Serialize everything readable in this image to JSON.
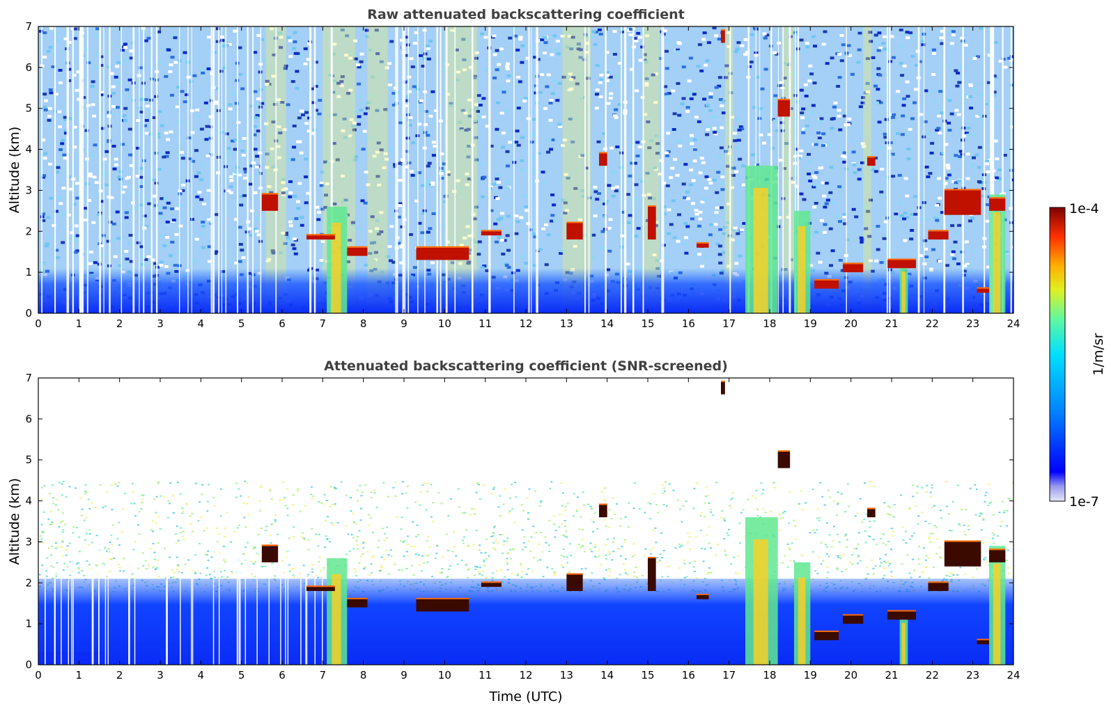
{
  "chart_data": [
    {
      "type": "heatmap",
      "title": "Raw attenuated backscattering coefficient",
      "xlabel": "",
      "ylabel": "Altitude (km)",
      "xlim": [
        0,
        24
      ],
      "ylim": [
        0,
        7
      ],
      "x_ticks": [
        "0",
        "1",
        "2",
        "3",
        "4",
        "5",
        "6",
        "7",
        "8",
        "9",
        "10",
        "11",
        "12",
        "13",
        "14",
        "15",
        "16",
        "17",
        "18",
        "19",
        "20",
        "21",
        "22",
        "23",
        "24"
      ],
      "y_ticks": [
        "0",
        "1",
        "2",
        "3",
        "4",
        "5",
        "6",
        "7"
      ],
      "colorscale": "jet",
      "color_range": [
        "1e-7",
        "1e-4"
      ],
      "features": {
        "boundary_layer_top_km": 0.6,
        "cloud_layers": [
          {
            "t": [
              5.5,
              5.9
            ],
            "alt": [
              2.5,
              2.9
            ]
          },
          {
            "t": [
              6.6,
              7.3
            ],
            "alt": [
              1.8,
              1.9
            ]
          },
          {
            "t": [
              7.6,
              8.1
            ],
            "alt": [
              1.4,
              1.6
            ]
          },
          {
            "t": [
              9.3,
              10.6
            ],
            "alt": [
              1.3,
              1.6
            ]
          },
          {
            "t": [
              10.9,
              11.4
            ],
            "alt": [
              1.9,
              2.0
            ]
          },
          {
            "t": [
              13.0,
              13.4
            ],
            "alt": [
              1.8,
              2.2
            ]
          },
          {
            "t": [
              13.8,
              14.0
            ],
            "alt": [
              3.6,
              3.9
            ]
          },
          {
            "t": [
              15.0,
              15.2
            ],
            "alt": [
              1.8,
              2.6
            ]
          },
          {
            "t": [
              16.2,
              16.5
            ],
            "alt": [
              1.6,
              1.7
            ]
          },
          {
            "t": [
              16.8,
              16.9
            ],
            "alt": [
              6.6,
              6.9
            ]
          },
          {
            "t": [
              18.2,
              18.5
            ],
            "alt": [
              4.8,
              5.2
            ]
          },
          {
            "t": [
              19.1,
              19.7
            ],
            "alt": [
              0.6,
              0.8
            ]
          },
          {
            "t": [
              19.8,
              20.3
            ],
            "alt": [
              1.0,
              1.2
            ]
          },
          {
            "t": [
              20.4,
              20.6
            ],
            "alt": [
              3.6,
              3.8
            ]
          },
          {
            "t": [
              20.9,
              21.6
            ],
            "alt": [
              1.1,
              1.3
            ]
          },
          {
            "t": [
              21.9,
              22.4
            ],
            "alt": [
              1.8,
              2.0
            ]
          },
          {
            "t": [
              22.3,
              23.2
            ],
            "alt": [
              2.4,
              3.0
            ]
          },
          {
            "t": [
              23.1,
              23.4
            ],
            "alt": [
              0.5,
              0.6
            ]
          },
          {
            "t": [
              23.4,
              23.8
            ],
            "alt": [
              2.5,
              2.8
            ]
          }
        ],
        "precipitation_shafts": [
          {
            "t": [
              7.1,
              7.6
            ],
            "alt_top": 2.6
          },
          {
            "t": [
              17.4,
              18.2
            ],
            "alt_top": 3.6
          },
          {
            "t": [
              18.6,
              19.0
            ],
            "alt_top": 2.5
          },
          {
            "t": [
              21.2,
              21.4
            ],
            "alt_top": 1.2
          },
          {
            "t": [
              23.4,
              23.8
            ],
            "alt_top": 2.9
          }
        ]
      }
    },
    {
      "type": "heatmap",
      "title": "Attenuated backscattering coefficient (SNR-screened)",
      "xlabel": "Time (UTC)",
      "ylabel": "Altitude (km)",
      "xlim": [
        0,
        24
      ],
      "ylim": [
        0,
        7
      ],
      "x_ticks": [
        "0",
        "1",
        "2",
        "3",
        "4",
        "5",
        "6",
        "7",
        "8",
        "9",
        "10",
        "11",
        "12",
        "13",
        "14",
        "15",
        "16",
        "17",
        "18",
        "19",
        "20",
        "21",
        "22",
        "23",
        "24"
      ],
      "y_ticks": [
        "0",
        "1",
        "2",
        "3",
        "4",
        "5",
        "6",
        "7"
      ],
      "colorscale": "jet",
      "color_range": [
        "1e-7",
        "1e-4"
      ],
      "features": {
        "boundary_layer_top_km": 1.8,
        "snr_mask_top_km": 4.5
      }
    }
  ],
  "colorbar": {
    "label": "1/m/sr",
    "max_label": "1e-4",
    "min_label": "1e-7",
    "colors": [
      "#e6e6fa",
      "#c0c0f0",
      "#9a9aee",
      "#6f6ff3",
      "#3a3af8",
      "#0000ff",
      "#0040ff",
      "#0080ff",
      "#00b0ff",
      "#00d8ff",
      "#20f0e0",
      "#60f8a0",
      "#a0f060",
      "#e0f020",
      "#ffe000",
      "#ffb000",
      "#ff7000",
      "#ff3000",
      "#e00000",
      "#a00000",
      "#800000"
    ]
  }
}
